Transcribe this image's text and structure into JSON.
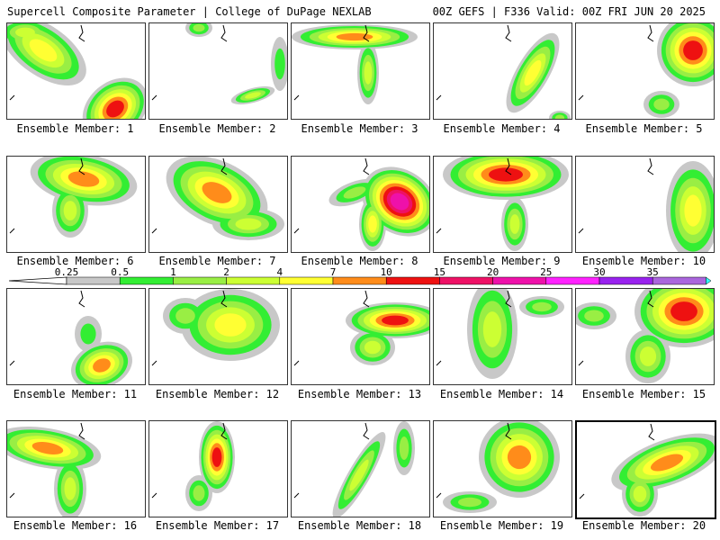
{
  "header": {
    "title": "Supercell Composite Parameter | College of DuPage NEXLAB",
    "run_info": "00Z GEFS | F336 Valid: 00Z FRI JUN 20 2025"
  },
  "colorbar": {
    "ticks": [
      "0.25",
      "0.5",
      "1",
      "2",
      "4",
      "7",
      "10",
      "15",
      "20",
      "25",
      "30",
      "35"
    ],
    "colors": [
      "#c8c8c8",
      "#33ee33",
      "#99ee44",
      "#ccff33",
      "#ffff33",
      "#ff8c1a",
      "#ee1111",
      "#ee1166",
      "#ee11aa",
      "#ff22ff",
      "#9922ee",
      "#aa66dd",
      "#33ffff"
    ]
  },
  "members": [
    {
      "label": "Ensemble Member: 1"
    },
    {
      "label": "Ensemble Member: 2"
    },
    {
      "label": "Ensemble Member: 3"
    },
    {
      "label": "Ensemble Member: 4"
    },
    {
      "label": "Ensemble Member: 5"
    },
    {
      "label": "Ensemble Member: 6"
    },
    {
      "label": "Ensemble Member: 7"
    },
    {
      "label": "Ensemble Member: 8"
    },
    {
      "label": "Ensemble Member: 9"
    },
    {
      "label": "Ensemble Member: 10"
    },
    {
      "label": "Ensemble Member: 11"
    },
    {
      "label": "Ensemble Member: 12"
    },
    {
      "label": "Ensemble Member: 13"
    },
    {
      "label": "Ensemble Member: 14"
    },
    {
      "label": "Ensemble Member: 15"
    },
    {
      "label": "Ensemble Member: 16"
    },
    {
      "label": "Ensemble Member: 17"
    },
    {
      "label": "Ensemble Member: 18"
    },
    {
      "label": "Ensemble Member: 19"
    },
    {
      "label": "Ensemble Member: 20"
    }
  ]
}
